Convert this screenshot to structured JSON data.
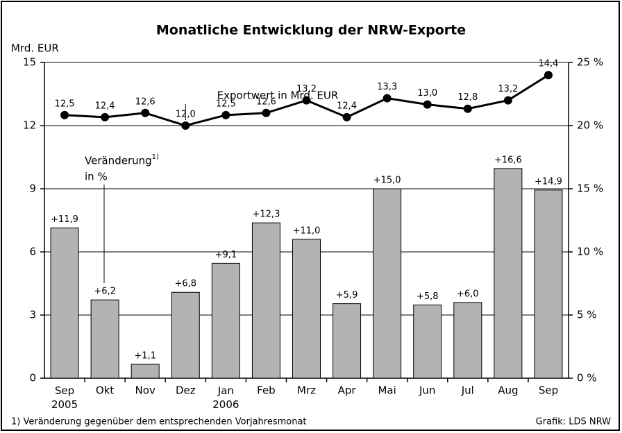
{
  "chart_data": {
    "type": "bar_line",
    "title": "Monatliche Entwicklung der NRW-Exporte",
    "y_axis_label": "Mrd. EUR",
    "categories": [
      "Sep 2005",
      "Okt",
      "Nov",
      "Dez",
      "Jan 2006",
      "Feb",
      "Mrz",
      "Apr",
      "Mai",
      "Jun",
      "Jul",
      "Aug",
      "Sep"
    ],
    "series": [
      {
        "name": "Exportwert in Mrd. EUR",
        "type": "line",
        "color": "#000000",
        "values": [
          12.5,
          12.4,
          12.6,
          12.0,
          12.5,
          12.6,
          13.2,
          12.4,
          13.3,
          13.0,
          12.8,
          13.2,
          14.4
        ],
        "value_labels": [
          "12,5",
          "12,4",
          "12,6",
          "12,0",
          "12,5",
          "12,6",
          "13,2",
          "12,4",
          "13,3",
          "13,0",
          "12,8",
          "13,2",
          "14,4"
        ]
      },
      {
        "name": "Veränderung",
        "name_superscript": "1)",
        "name_line2": "in %",
        "type": "bar",
        "axis": "y2",
        "color": "#b3b3b3",
        "values": [
          11.9,
          6.2,
          1.1,
          6.8,
          9.1,
          12.3,
          11.0,
          5.9,
          15.0,
          5.8,
          6.0,
          16.6,
          14.9
        ],
        "value_labels": [
          "+11,9",
          "+6,2",
          "+1,1",
          "+6,8",
          "+9,1",
          "+12,3",
          "+11,0",
          "+5,9",
          "+15,0",
          "+5,8",
          "+6,0",
          "+16,6",
          "+14,9"
        ]
      }
    ],
    "ylim": [
      0,
      15
    ],
    "yticks": [
      0,
      3,
      6,
      9,
      12,
      15
    ],
    "y2lim": [
      0,
      25
    ],
    "y2ticks": [
      {
        "value": 0,
        "label": "0 %"
      },
      {
        "value": 5,
        "label": "5 %"
      },
      {
        "value": 10,
        "label": "10 %"
      },
      {
        "value": 15,
        "label": "15 %"
      },
      {
        "value": 20,
        "label": "20 %"
      },
      {
        "value": 25,
        "label": "25 %"
      }
    ],
    "grid": true,
    "footnote": "1) Veränderung gegenüber dem entsprechenden Vorjahresmonat",
    "source": "Grafik: LDS NRW"
  }
}
